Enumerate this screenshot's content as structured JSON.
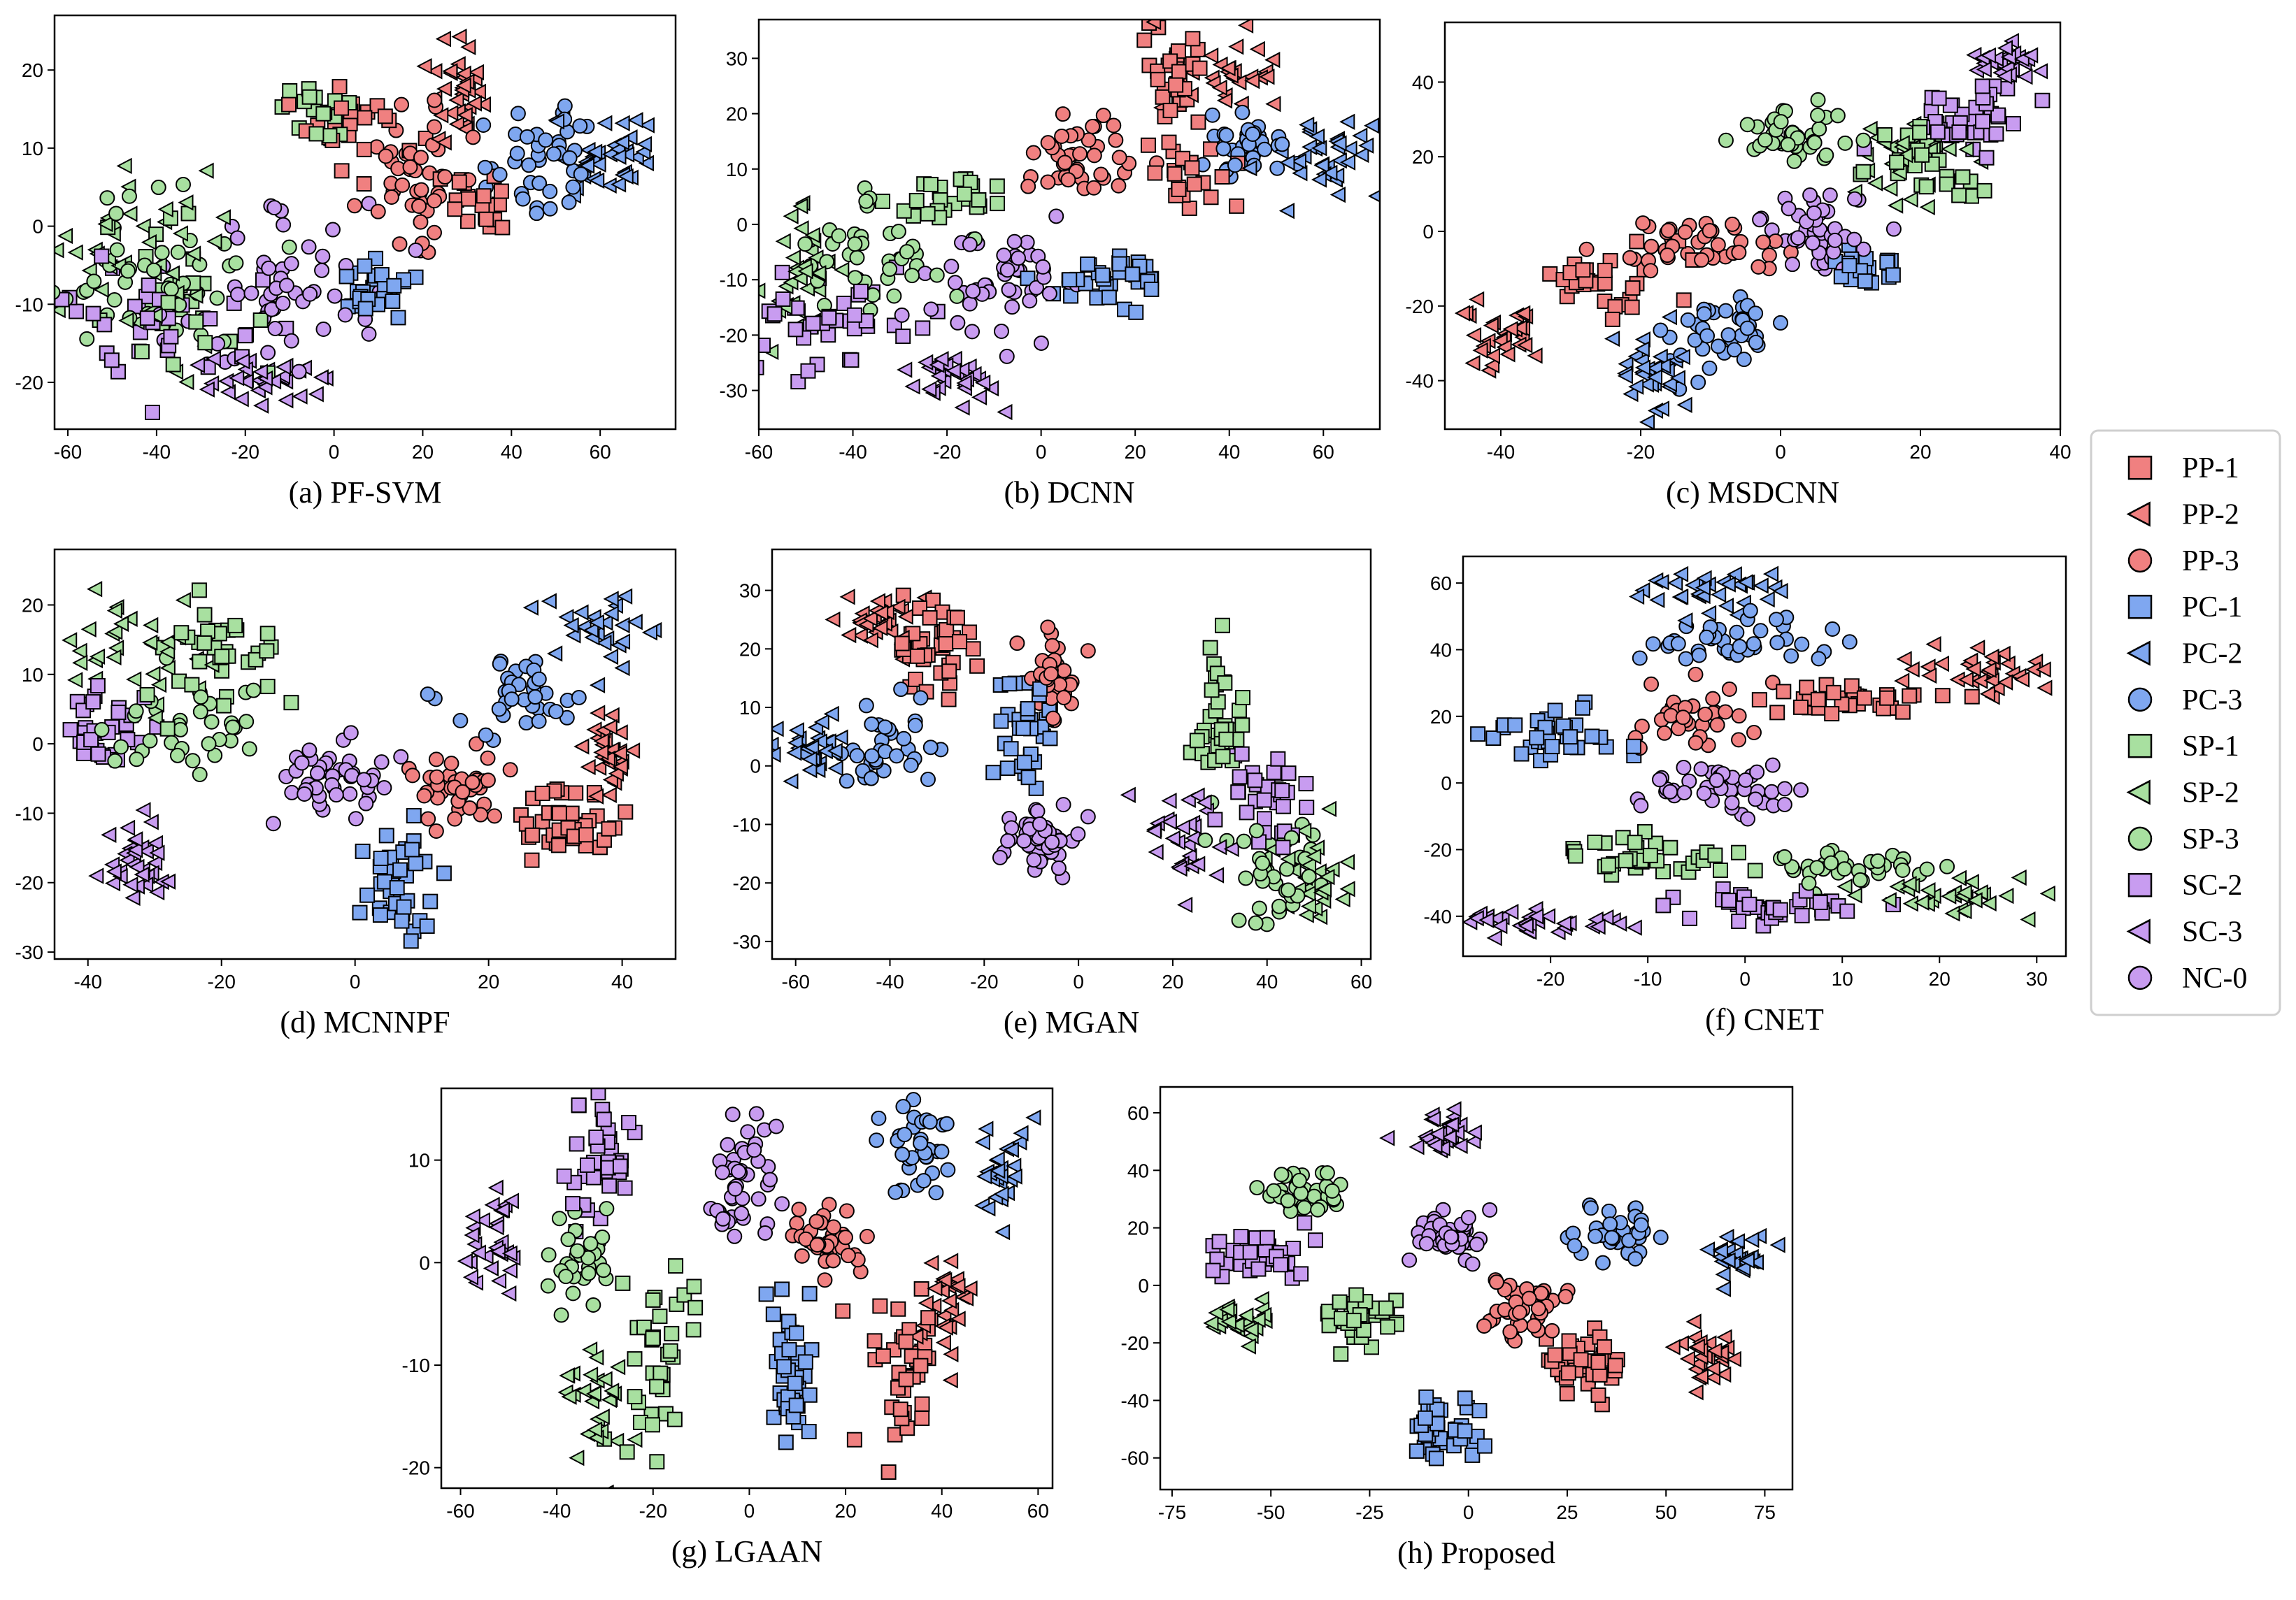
{
  "legend": {
    "placement": "right",
    "entries": [
      {
        "label": "PP-1",
        "marker": "square",
        "color": "#f08080"
      },
      {
        "label": "PP-2",
        "marker": "triangle-left",
        "color": "#f08080"
      },
      {
        "label": "PP-3",
        "marker": "circle",
        "color": "#f08080"
      },
      {
        "label": "PC-1",
        "marker": "square",
        "color": "#7fa7f0"
      },
      {
        "label": "PC-2",
        "marker": "triangle-left",
        "color": "#7fa7f0"
      },
      {
        "label": "PC-3",
        "marker": "circle",
        "color": "#7fa7f0"
      },
      {
        "label": "SP-1",
        "marker": "square",
        "color": "#a8e0a0"
      },
      {
        "label": "SP-2",
        "marker": "triangle-left",
        "color": "#a8e0a0"
      },
      {
        "label": "SP-3",
        "marker": "circle",
        "color": "#a8e0a0"
      },
      {
        "label": "SC-2",
        "marker": "square",
        "color": "#c89cf0"
      },
      {
        "label": "SC-3",
        "marker": "triangle-left",
        "color": "#c89cf0"
      },
      {
        "label": "NC-0",
        "marker": "circle",
        "color": "#c89cf0"
      }
    ]
  },
  "chart_data": [
    {
      "type": "scatter",
      "caption": "(a) PF-SVM",
      "xlim": [
        -63,
        77
      ],
      "ylim": [
        -26,
        27
      ],
      "xticks": [
        -60,
        -40,
        -20,
        0,
        20,
        40,
        60
      ],
      "yticks": [
        -20,
        -10,
        0,
        10,
        20
      ],
      "clusters": [
        {
          "c": "PP-1",
          "x": 5,
          "y": 12,
          "sx": 6,
          "sy": 3,
          "n": 25
        },
        {
          "c": "PP-1",
          "x": 32,
          "y": 3,
          "sx": 5,
          "sy": 2,
          "n": 20
        },
        {
          "c": "PP-2",
          "x": 28,
          "y": 18,
          "sx": 3,
          "sy": 4,
          "n": 35
        },
        {
          "c": "PP-3",
          "x": 18,
          "y": 7,
          "sx": 6,
          "sy": 4,
          "n": 45
        },
        {
          "c": "PC-1",
          "x": 10,
          "y": -8,
          "sx": 6,
          "sy": 2,
          "n": 30
        },
        {
          "c": "PC-2",
          "x": 62,
          "y": 9,
          "sx": 6,
          "sy": 3,
          "n": 40
        },
        {
          "c": "PC-3",
          "x": 48,
          "y": 9,
          "sx": 6,
          "sy": 4,
          "n": 40
        },
        {
          "c": "SP-1",
          "x": -5,
          "y": 15,
          "sx": 5,
          "sy": 2,
          "n": 15
        },
        {
          "c": "SP-1",
          "x": -35,
          "y": -10,
          "sx": 10,
          "sy": 6,
          "n": 25
        },
        {
          "c": "SP-2",
          "x": -45,
          "y": -4,
          "sx": 10,
          "sy": 6,
          "n": 40
        },
        {
          "c": "SP-3",
          "x": -42,
          "y": -6,
          "sx": 10,
          "sy": 5,
          "n": 45
        },
        {
          "c": "SC-2",
          "x": -40,
          "y": -12,
          "sx": 12,
          "sy": 4,
          "n": 35
        },
        {
          "c": "SC-3",
          "x": -15,
          "y": -20,
          "sx": 7,
          "sy": 1.5,
          "n": 35
        },
        {
          "c": "NC-0",
          "x": -10,
          "y": -7,
          "sx": 12,
          "sy": 5,
          "n": 55
        }
      ]
    },
    {
      "type": "scatter",
      "caption": "(b) DCNN",
      "xlim": [
        -60,
        72
      ],
      "ylim": [
        -37,
        37
      ],
      "xticks": [
        -60,
        -40,
        -20,
        0,
        20,
        40,
        60
      ],
      "yticks": [
        -30,
        -20,
        -10,
        0,
        10,
        20,
        30
      ],
      "clusters": [
        {
          "c": "PP-1",
          "x": 28,
          "y": 25,
          "sx": 4,
          "sy": 5,
          "n": 30
        },
        {
          "c": "PP-1",
          "x": 30,
          "y": 8,
          "sx": 6,
          "sy": 3,
          "n": 20
        },
        {
          "c": "PP-2",
          "x": 38,
          "y": 26,
          "sx": 5,
          "sy": 4,
          "n": 30
        },
        {
          "c": "PP-3",
          "x": 10,
          "y": 12,
          "sx": 6,
          "sy": 4,
          "n": 40
        },
        {
          "c": "PC-1",
          "x": 12,
          "y": -10,
          "sx": 6,
          "sy": 3,
          "n": 35
        },
        {
          "c": "PC-2",
          "x": 60,
          "y": 12,
          "sx": 6,
          "sy": 3,
          "n": 40
        },
        {
          "c": "PC-3",
          "x": 45,
          "y": 15,
          "sx": 5,
          "sy": 4,
          "n": 35
        },
        {
          "c": "SP-1",
          "x": -20,
          "y": 5,
          "sx": 6,
          "sy": 3,
          "n": 25
        },
        {
          "c": "SP-2",
          "x": -50,
          "y": -8,
          "sx": 5,
          "sy": 6,
          "n": 35
        },
        {
          "c": "SP-3",
          "x": -35,
          "y": -5,
          "sx": 8,
          "sy": 6,
          "n": 40
        },
        {
          "c": "SC-2",
          "x": -45,
          "y": -18,
          "sx": 8,
          "sy": 4,
          "n": 40
        },
        {
          "c": "SC-3",
          "x": -18,
          "y": -28,
          "sx": 5,
          "sy": 3,
          "n": 30
        },
        {
          "c": "NC-0",
          "x": -10,
          "y": -12,
          "sx": 8,
          "sy": 6,
          "n": 50
        }
      ]
    },
    {
      "type": "scatter",
      "caption": "(c) MSDCNN",
      "xlim": [
        -48,
        40
      ],
      "ylim": [
        -53,
        56
      ],
      "xticks": [
        -40,
        -20,
        0,
        20,
        40
      ],
      "yticks": [
        -40,
        -20,
        0,
        20,
        40
      ],
      "clusters": [
        {
          "c": "PP-1",
          "x": -25,
          "y": -12,
          "sx": 5,
          "sy": 5,
          "n": 30
        },
        {
          "c": "PP-2",
          "x": -40,
          "y": -28,
          "sx": 3,
          "sy": 5,
          "n": 30
        },
        {
          "c": "PP-3",
          "x": -13,
          "y": -5,
          "sx": 6,
          "sy": 4,
          "n": 40
        },
        {
          "c": "PC-1",
          "x": 12,
          "y": -10,
          "sx": 3,
          "sy": 3,
          "n": 20
        },
        {
          "c": "PC-2",
          "x": -18,
          "y": -38,
          "sx": 3,
          "sy": 6,
          "n": 35
        },
        {
          "c": "PC-3",
          "x": -8,
          "y": -27,
          "sx": 4,
          "sy": 6,
          "n": 40
        },
        {
          "c": "SP-1",
          "x": 20,
          "y": 17,
          "sx": 4,
          "sy": 6,
          "n": 30
        },
        {
          "c": "SP-2",
          "x": 18,
          "y": 20,
          "sx": 5,
          "sy": 5,
          "n": 30
        },
        {
          "c": "SP-3",
          "x": 2,
          "y": 25,
          "sx": 4,
          "sy": 4,
          "n": 40
        },
        {
          "c": "SC-2",
          "x": 27,
          "y": 30,
          "sx": 5,
          "sy": 5,
          "n": 40
        },
        {
          "c": "SC-3",
          "x": 32,
          "y": 45,
          "sx": 3,
          "sy": 2,
          "n": 30
        },
        {
          "c": "NC-0",
          "x": 5,
          "y": 0,
          "sx": 4,
          "sy": 6,
          "n": 50
        }
      ]
    },
    {
      "type": "scatter",
      "caption": "(d) MCNNPF",
      "xlim": [
        -45,
        48
      ],
      "ylim": [
        -31,
        28
      ],
      "xticks": [
        -40,
        -20,
        0,
        20,
        40
      ],
      "yticks": [
        -30,
        -20,
        -10,
        0,
        10,
        20
      ],
      "clusters": [
        {
          "c": "PP-1",
          "x": 32,
          "y": -12,
          "sx": 4,
          "sy": 2.5,
          "n": 40
        },
        {
          "c": "PP-2",
          "x": 38,
          "y": -1,
          "sx": 2,
          "sy": 3,
          "n": 30
        },
        {
          "c": "PP-3",
          "x": 15,
          "y": -6,
          "sx": 4,
          "sy": 2.5,
          "n": 40
        },
        {
          "c": "PC-1",
          "x": 6,
          "y": -20,
          "sx": 3,
          "sy": 4,
          "n": 40
        },
        {
          "c": "PC-2",
          "x": 38,
          "y": 17,
          "sx": 4,
          "sy": 3,
          "n": 30
        },
        {
          "c": "PC-3",
          "x": 25,
          "y": 7,
          "sx": 5,
          "sy": 4,
          "n": 35
        },
        {
          "c": "SP-1",
          "x": -18,
          "y": 15,
          "sx": 5,
          "sy": 4,
          "n": 35
        },
        {
          "c": "SP-2",
          "x": -32,
          "y": 14,
          "sx": 5,
          "sy": 4,
          "n": 35
        },
        {
          "c": "SP-3",
          "x": -25,
          "y": 3,
          "sx": 6,
          "sy": 4,
          "n": 35
        },
        {
          "c": "SC-2",
          "x": -38,
          "y": 2,
          "sx": 3,
          "sy": 2.5,
          "n": 35
        },
        {
          "c": "SC-3",
          "x": -32,
          "y": -17,
          "sx": 3,
          "sy": 3,
          "n": 35
        },
        {
          "c": "NC-0",
          "x": -3,
          "y": -5,
          "sx": 4,
          "sy": 3,
          "n": 45
        }
      ]
    },
    {
      "type": "scatter",
      "caption": "(e) MGAN",
      "xlim": [
        -65,
        62
      ],
      "ylim": [
        -33,
        37
      ],
      "xticks": [
        -60,
        -40,
        -20,
        0,
        20,
        40,
        60
      ],
      "yticks": [
        -30,
        -20,
        -10,
        0,
        10,
        20,
        30
      ],
      "clusters": [
        {
          "c": "PP-1",
          "x": -30,
          "y": 20,
          "sx": 5,
          "sy": 3,
          "n": 40
        },
        {
          "c": "PP-2",
          "x": -42,
          "y": 24,
          "sx": 4,
          "sy": 3,
          "n": 30
        },
        {
          "c": "PP-3",
          "x": -5,
          "y": 16,
          "sx": 3,
          "sy": 4,
          "n": 40
        },
        {
          "c": "PC-1",
          "x": -12,
          "y": 5,
          "sx": 4,
          "sy": 5,
          "n": 35
        },
        {
          "c": "PC-2",
          "x": -55,
          "y": 3,
          "sx": 4,
          "sy": 4,
          "n": 30
        },
        {
          "c": "PC-3",
          "x": -40,
          "y": 4,
          "sx": 6,
          "sy": 4,
          "n": 35
        },
        {
          "c": "SP-1",
          "x": 30,
          "y": 7,
          "sx": 3,
          "sy": 5,
          "n": 35
        },
        {
          "c": "SP-2",
          "x": 50,
          "y": -20,
          "sx": 4,
          "sy": 5,
          "n": 30
        },
        {
          "c": "SP-3",
          "x": 40,
          "y": -18,
          "sx": 6,
          "sy": 5,
          "n": 40
        },
        {
          "c": "SC-2",
          "x": 40,
          "y": -5,
          "sx": 5,
          "sy": 4,
          "n": 35
        },
        {
          "c": "SC-3",
          "x": 22,
          "y": -12,
          "sx": 4,
          "sy": 4,
          "n": 30
        },
        {
          "c": "NC-0",
          "x": -8,
          "y": -13,
          "sx": 4,
          "sy": 3,
          "n": 45
        }
      ]
    },
    {
      "type": "scatter",
      "caption": "(f) CNET",
      "xlim": [
        -29,
        33
      ],
      "ylim": [
        -52,
        68
      ],
      "xticks": [
        -20,
        -10,
        0,
        10,
        20,
        30
      ],
      "yticks": [
        -40,
        -20,
        0,
        20,
        40,
        60
      ],
      "clusters": [
        {
          "c": "PP-1",
          "x": 10,
          "y": 25,
          "sx": 5,
          "sy": 2.5,
          "n": 35
        },
        {
          "c": "PP-2",
          "x": 24,
          "y": 33,
          "sx": 4,
          "sy": 3,
          "n": 35
        },
        {
          "c": "PP-3",
          "x": -6,
          "y": 20,
          "sx": 3,
          "sy": 5,
          "n": 35
        },
        {
          "c": "PC-1",
          "x": -20,
          "y": 14,
          "sx": 3,
          "sy": 5,
          "n": 35
        },
        {
          "c": "PC-2",
          "x": -4,
          "y": 58,
          "sx": 4,
          "sy": 4,
          "n": 35
        },
        {
          "c": "PC-3",
          "x": 0,
          "y": 43,
          "sx": 4,
          "sy": 3,
          "n": 40
        },
        {
          "c": "SP-1",
          "x": -10,
          "y": -22,
          "sx": 5,
          "sy": 3,
          "n": 35
        },
        {
          "c": "SP-2",
          "x": 22,
          "y": -35,
          "sx": 6,
          "sy": 3,
          "n": 35
        },
        {
          "c": "SP-3",
          "x": 10,
          "y": -25,
          "sx": 5,
          "sy": 3,
          "n": 35
        },
        {
          "c": "SC-2",
          "x": 2,
          "y": -37,
          "sx": 5,
          "sy": 3,
          "n": 40
        },
        {
          "c": "SC-3",
          "x": -20,
          "y": -42,
          "sx": 5,
          "sy": 1.5,
          "n": 35
        },
        {
          "c": "NC-0",
          "x": -3,
          "y": -2,
          "sx": 4,
          "sy": 3.5,
          "n": 45
        }
      ]
    },
    {
      "type": "scatter",
      "caption": "(g) LGAAN",
      "xlim": [
        -64,
        63
      ],
      "ylim": [
        -22,
        17
      ],
      "xticks": [
        -60,
        -40,
        -20,
        0,
        20,
        40,
        60
      ],
      "yticks": [
        -20,
        -10,
        0,
        10
      ],
      "clusters": [
        {
          "c": "PP-1",
          "x": 33,
          "y": -10,
          "sx": 4,
          "sy": 4,
          "n": 40
        },
        {
          "c": "PP-2",
          "x": 40,
          "y": -5,
          "sx": 3,
          "sy": 3,
          "n": 30
        },
        {
          "c": "PP-3",
          "x": 15,
          "y": 2,
          "sx": 4,
          "sy": 2,
          "n": 40
        },
        {
          "c": "PC-1",
          "x": 8,
          "y": -10,
          "sx": 2.5,
          "sy": 4,
          "n": 40
        },
        {
          "c": "PC-2",
          "x": 52,
          "y": 9,
          "sx": 3,
          "sy": 2.5,
          "n": 30
        },
        {
          "c": "PC-3",
          "x": 34,
          "y": 11,
          "sx": 4,
          "sy": 2.5,
          "n": 35
        },
        {
          "c": "SP-1",
          "x": -20,
          "y": -8,
          "sx": 4,
          "sy": 4,
          "n": 35
        },
        {
          "c": "SP-2",
          "x": -32,
          "y": -14,
          "sx": 3,
          "sy": 3,
          "n": 30
        },
        {
          "c": "SP-3",
          "x": -34,
          "y": 0,
          "sx": 4,
          "sy": 3,
          "n": 30
        },
        {
          "c": "SC-2",
          "x": -31,
          "y": 10,
          "sx": 4,
          "sy": 3,
          "n": 40
        },
        {
          "c": "SC-3",
          "x": -53,
          "y": 2,
          "sx": 3,
          "sy": 3,
          "n": 30
        },
        {
          "c": "NC-0",
          "x": -2,
          "y": 8,
          "sx": 4,
          "sy": 3,
          "n": 45
        }
      ]
    },
    {
      "type": "scatter",
      "caption": "(h) Proposed",
      "xlim": [
        -78,
        82
      ],
      "ylim": [
        -71,
        69
      ],
      "xticks": [
        -75,
        -50,
        -25,
        0,
        25,
        50,
        75
      ],
      "yticks": [
        -60,
        -40,
        -20,
        0,
        20,
        40,
        60
      ],
      "clusters": [
        {
          "c": "PP-1",
          "x": 28,
          "y": -28,
          "sx": 5,
          "sy": 5,
          "n": 40
        },
        {
          "c": "PP-2",
          "x": 60,
          "y": -25,
          "sx": 4,
          "sy": 5,
          "n": 30
        },
        {
          "c": "PP-3",
          "x": 13,
          "y": -8,
          "sx": 5,
          "sy": 5,
          "n": 40
        },
        {
          "c": "PC-1",
          "x": -6,
          "y": -50,
          "sx": 4,
          "sy": 5,
          "n": 40
        },
        {
          "c": "PC-2",
          "x": 68,
          "y": 10,
          "sx": 5,
          "sy": 4,
          "n": 30
        },
        {
          "c": "PC-3",
          "x": 38,
          "y": 18,
          "sx": 5,
          "sy": 5,
          "n": 35
        },
        {
          "c": "SP-1",
          "x": -28,
          "y": -13,
          "sx": 5,
          "sy": 5,
          "n": 40
        },
        {
          "c": "SP-2",
          "x": -58,
          "y": -13,
          "sx": 5,
          "sy": 4,
          "n": 30
        },
        {
          "c": "SP-3",
          "x": -42,
          "y": 33,
          "sx": 5,
          "sy": 4,
          "n": 40
        },
        {
          "c": "SC-2",
          "x": -53,
          "y": 10,
          "sx": 6,
          "sy": 4,
          "n": 40
        },
        {
          "c": "SC-3",
          "x": -7,
          "y": 52,
          "sx": 4,
          "sy": 4,
          "n": 30
        },
        {
          "c": "NC-0",
          "x": -5,
          "y": 18,
          "sx": 4,
          "sy": 4,
          "n": 45
        }
      ]
    }
  ]
}
